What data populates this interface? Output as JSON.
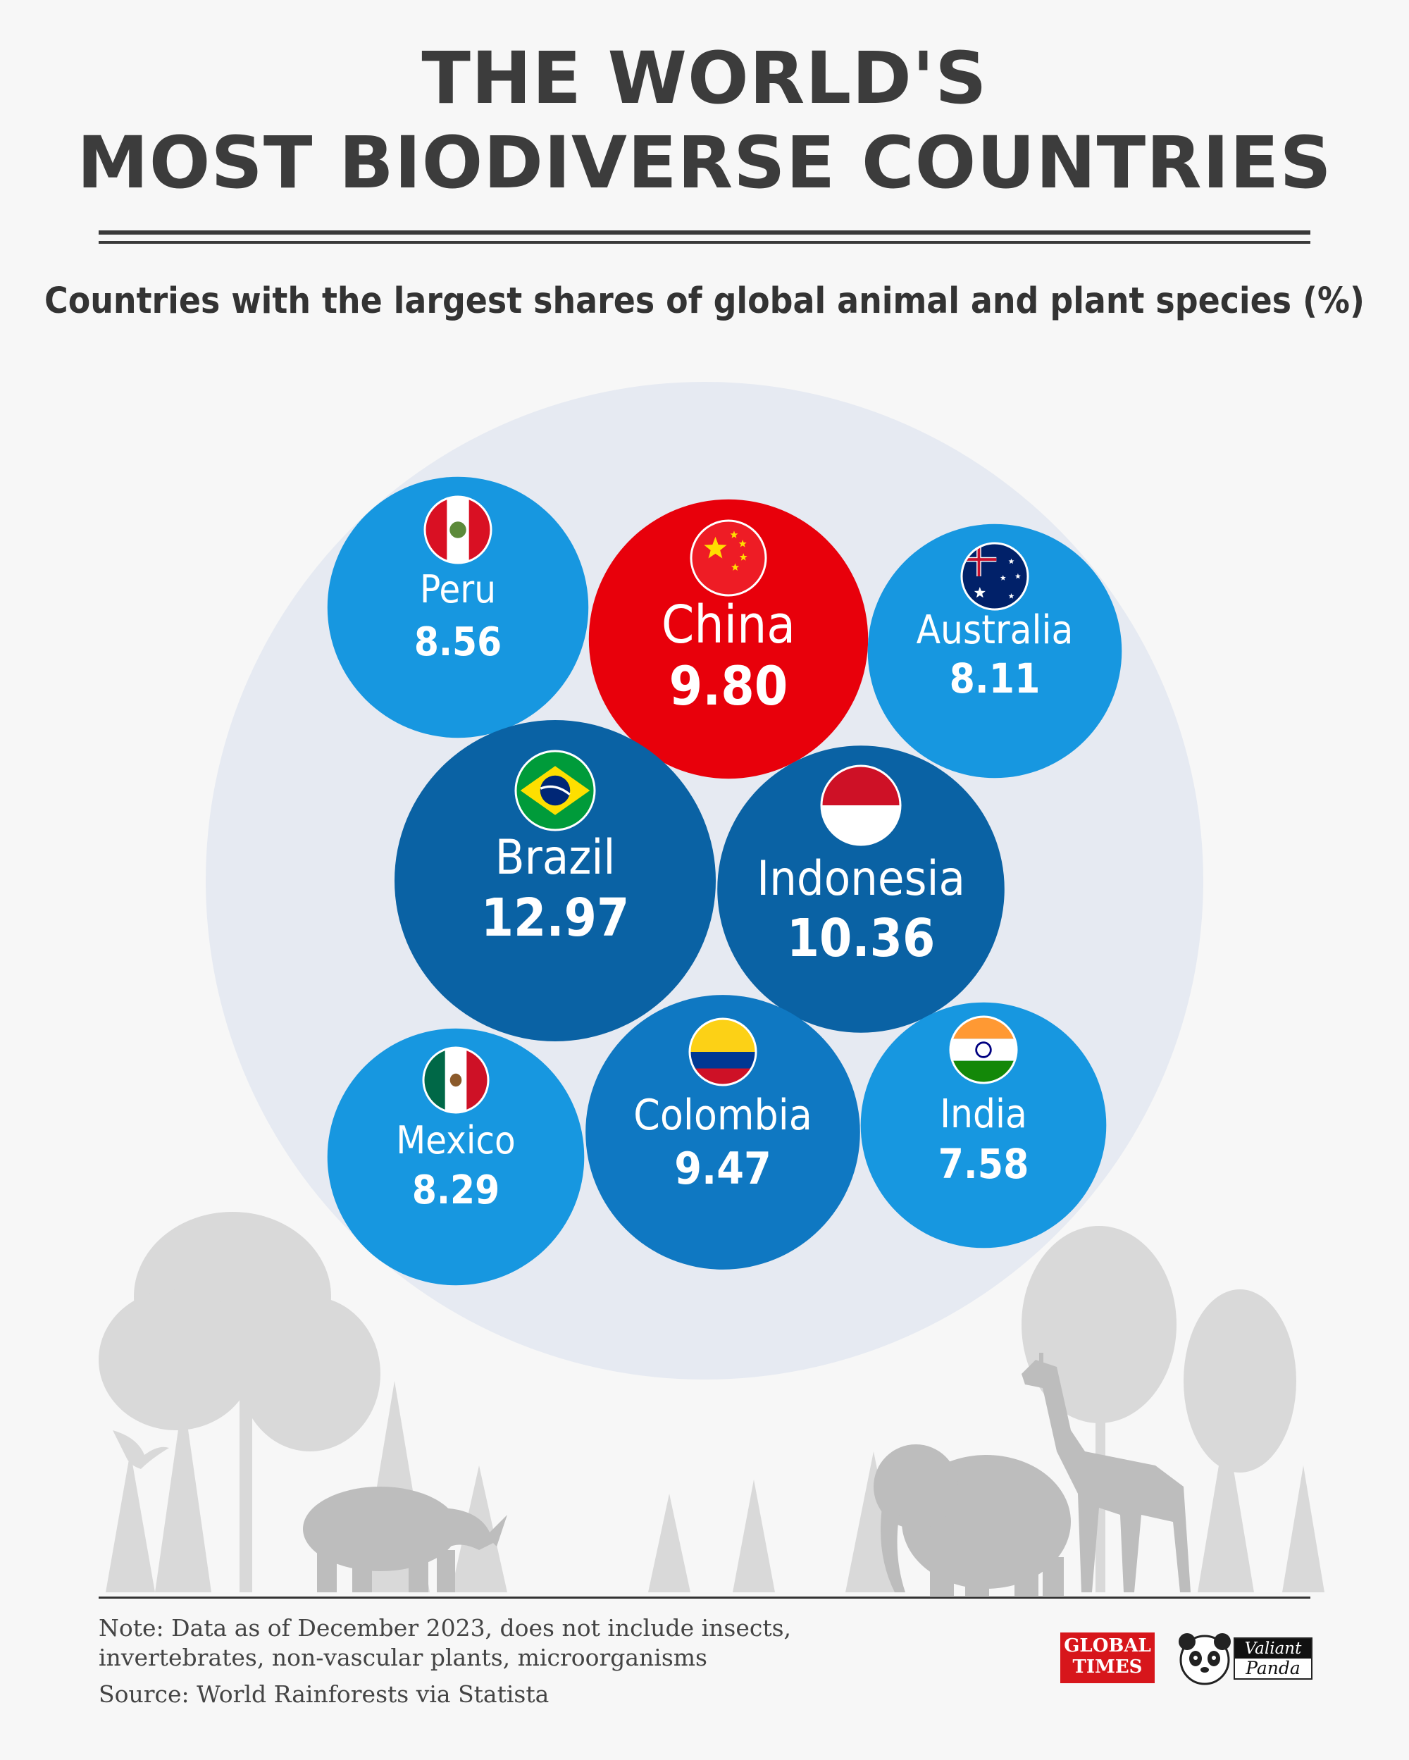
{
  "title_line1": "THE WORLD'S",
  "title_line2": "MOST BIODIVERSE COUNTRIES",
  "subtitle": "Countries with the largest shares of global animal and plant species (%)",
  "chart_data": {
    "type": "bubble",
    "title": "THE WORLD'S MOST BIODIVERSE COUNTRIES",
    "subtitle": "Countries with the largest shares of global animal and plant species (%)",
    "categories": [
      "Peru",
      "China",
      "Australia",
      "Brazil",
      "Indonesia",
      "Mexico",
      "Colombia",
      "India"
    ],
    "values": [
      "8.56",
      "9.80",
      "8.11",
      "12.97",
      "10.36",
      "8.29",
      "9.47",
      "7.58"
    ],
    "colors": [
      "#1797e0",
      "#e8000b",
      "#1797e0",
      "#0a62a4",
      "#0a62a4",
      "#1797e0",
      "#0f78c2",
      "#1797e0"
    ],
    "flag_icons": [
      "peru-flag-icon",
      "china-flag-icon",
      "australia-flag-icon",
      "brazil-flag-icon",
      "indonesia-flag-icon",
      "mexico-flag-icon",
      "colombia-flag-icon",
      "india-flag-icon"
    ]
  },
  "note_line1": "Note: Data as of December 2023, does not include insects,",
  "note_line2": "invertebrates, non-vascular plants, microorganisms",
  "source": "Source: World Rainforests via Statista",
  "logos": {
    "gt_line1": "GLOBAL",
    "gt_line2": "TIMES",
    "vp_line1": "Valiant",
    "vp_line2": "Panda"
  }
}
